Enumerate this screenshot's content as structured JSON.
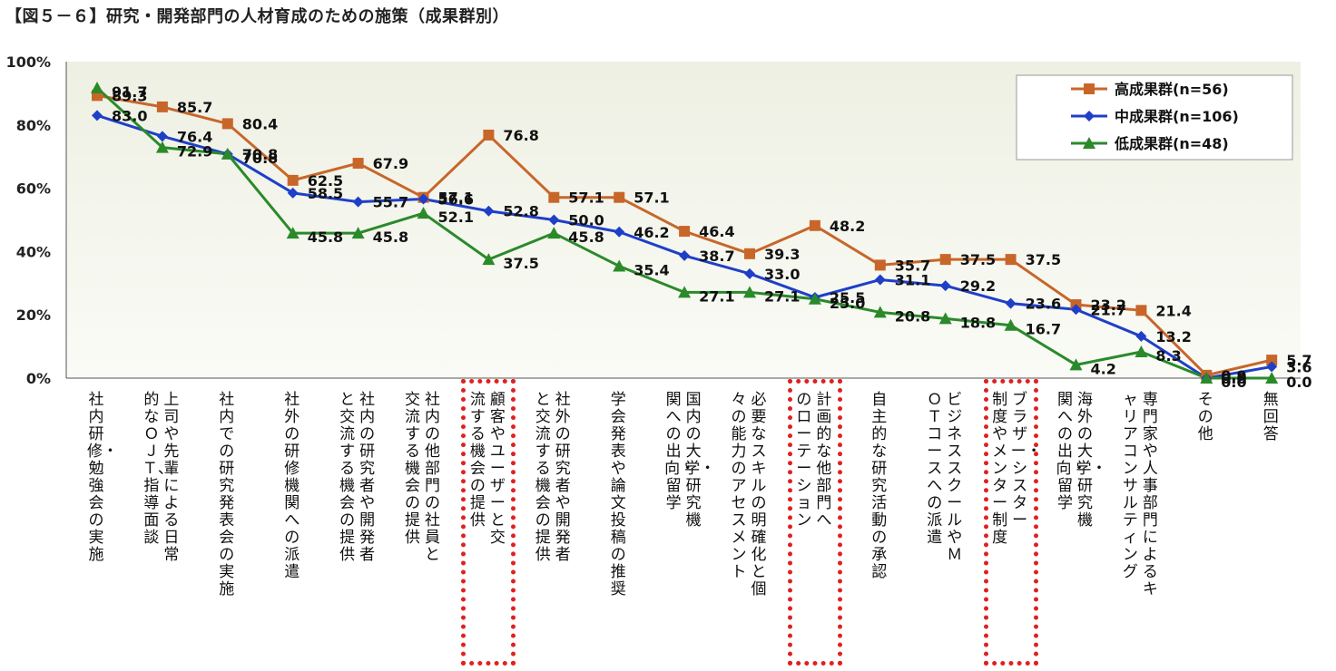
{
  "title": "【図５－６】研究・開発部門の人材育成のための施策（成果群別）",
  "chart_data": {
    "type": "line",
    "ylim": [
      0,
      100
    ],
    "yticks": [
      "0%",
      "20%",
      "40%",
      "60%",
      "80%",
      "100%"
    ],
    "legend_position": "top-right",
    "grid": false,
    "categories": [
      "社内研修・勉強会の実施",
      "上司や先輩による日常的なＯＪＴ、指導面談",
      "社内での研究発表会の実施",
      "社外の研修機関への派遣",
      "社内の研究者や開発者と交流する機会の提供",
      "社内の他部門の社員と交流する機会の提供",
      "顧客やユーザーと交流する機会の提供",
      "社外の研究者や開発者と交流する機会の提供",
      "学会発表や論文投稿の推奨",
      "国内の大学・研究機関への出向・留学",
      "必要なスキルの明確化と個々の能力のアセスメント",
      "計画的な他部門へのローテーション",
      "自主的な研究活動の承認",
      "ビジネススクールやＭＯＴコースへの派遣",
      "ブラザー・シスター制度やメンター制度",
      "海外の大学・研究機関への出向・留学",
      "専門家や人事部門によるキャリアコンサルティング",
      "その他",
      "無回答"
    ],
    "highlighted": [
      6,
      11,
      14
    ],
    "series": [
      {
        "name": "高成果群(n=56)",
        "color": "#c8662a",
        "marker": "square",
        "values": [
          89.3,
          85.7,
          80.4,
          62.5,
          67.9,
          57.1,
          76.8,
          57.1,
          57.1,
          46.4,
          39.3,
          48.2,
          35.7,
          37.5,
          37.5,
          23.2,
          21.4,
          0.9,
          5.7
        ]
      },
      {
        "name": "中成果群(n=106)",
        "color": "#1f3fc8",
        "marker": "diamond",
        "values": [
          83.0,
          76.4,
          70.8,
          58.5,
          55.7,
          56.6,
          52.8,
          50.0,
          46.2,
          38.7,
          33.0,
          25.5,
          31.1,
          29.2,
          23.6,
          21.7,
          13.2,
          0.0,
          3.6
        ]
      },
      {
        "name": "低成果群(n=48)",
        "color": "#2a8a2a",
        "marker": "triangle",
        "values": [
          91.7,
          72.9,
          70.8,
          45.8,
          45.8,
          52.1,
          37.5,
          45.8,
          35.4,
          27.1,
          27.1,
          25.0,
          20.8,
          18.8,
          16.7,
          4.2,
          8.3,
          0.0,
          0.0
        ]
      }
    ]
  }
}
